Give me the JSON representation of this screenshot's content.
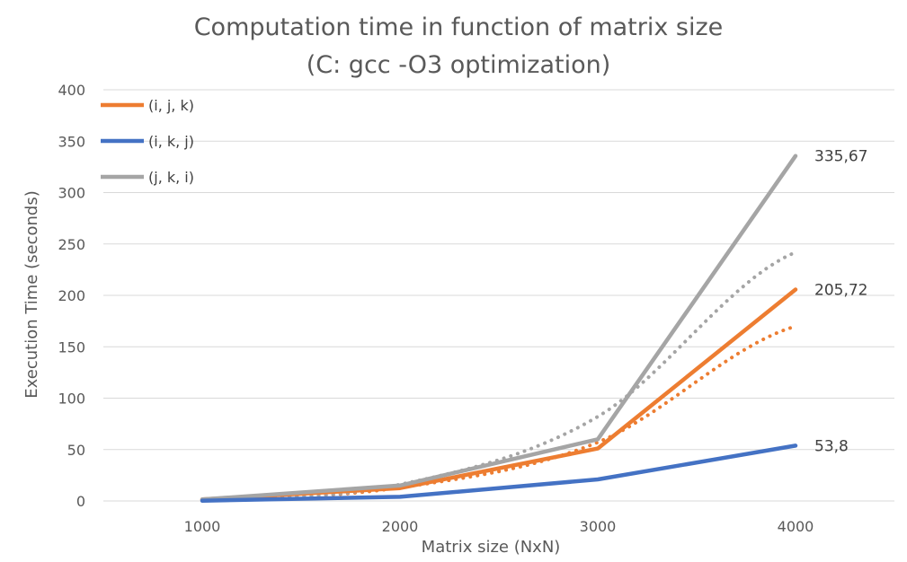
{
  "chart_data": {
    "type": "line",
    "title": [
      "Computation time in function of matrix size",
      "(C: gcc -O3 optimization)"
    ],
    "xlabel": "Matrix size (NxN)",
    "ylabel": "Execution Time (seconds)",
    "categories": [
      "1000",
      "2000",
      "3000",
      "4000"
    ],
    "ylim": [
      0,
      400
    ],
    "yticks": [
      "0",
      "50",
      "100",
      "150",
      "200",
      "250",
      "300",
      "350",
      "400"
    ],
    "grid": true,
    "legend_position": "top-left",
    "series": [
      {
        "name": "(i, j, k)",
        "color": "#ED7D31",
        "values": [
          1.5,
          12.5,
          51,
          205.72
        ],
        "end_label": "205,72",
        "trendline": {
          "style": "dotted",
          "values": [
            1,
            13,
            57,
            170
          ]
        }
      },
      {
        "name": "(i, k, j)",
        "color": "#4472C4",
        "values": [
          0.3,
          4,
          21,
          53.8
        ],
        "end_label": "53,8",
        "trendline": null
      },
      {
        "name": "(j, k, i)",
        "color": "#A5A5A5",
        "values": [
          1.5,
          15,
          60,
          335.67
        ],
        "end_label": "335,67",
        "trendline": {
          "style": "dotted",
          "values": [
            1,
            16,
            82,
            242
          ]
        }
      }
    ]
  }
}
